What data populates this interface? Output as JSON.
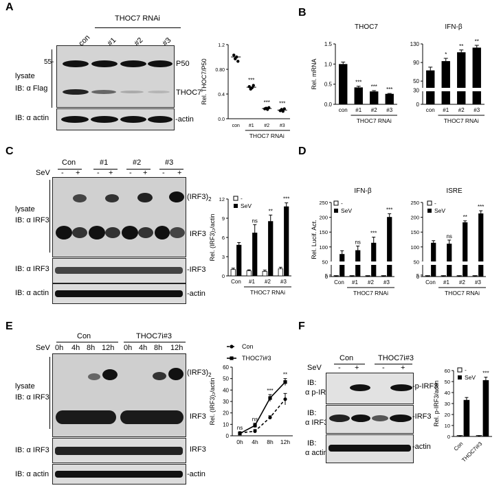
{
  "panels": {
    "A": {
      "letter": "A",
      "group_label": "THOC7 RNAi",
      "lanes": [
        "con",
        "#1",
        "#2",
        "#3"
      ],
      "lysate": "lysate",
      "ib_flag": "IB: α Flag",
      "marker": "55-",
      "band_p50": "P50",
      "band_thoc7": "THOC7",
      "ib_actin": "IB: α actin",
      "band_actin": "-actin"
    },
    "B": {
      "letter": "B"
    },
    "C": {
      "letter": "C",
      "lanes": [
        "Con",
        "#1",
        "#2",
        "#3"
      ],
      "sev": "SeV",
      "minus": "-",
      "plus": "+",
      "lysate": "lysate",
      "ib_irf3": "IB: α IRF3",
      "band_dimer": "(IRF3)",
      "band_dimer_sub": "2",
      "band_irf3": "IRF3",
      "band_irf3_dash": "-IRF3",
      "ib_irf3_2": "IB: α IRF3",
      "ib_actin": "IB: α actin",
      "band_actin": "-actin"
    },
    "D": {
      "letter": "D"
    },
    "E": {
      "letter": "E",
      "sev": "SeV",
      "groups": [
        "Con",
        "THOC7i#3"
      ],
      "times": [
        "0h",
        "4h",
        "8h",
        "12h"
      ],
      "lysate": "lysate",
      "ib_irf3": "IB: α IRF3",
      "band_dimer": "(IRF3)",
      "band_dimer_sub": "2",
      "band_irf3": "IRF3",
      "ib_irf3_2": "IB: α IRF3",
      "ib_actin": "IB: α actin",
      "band_irf3_dash": "IRF3",
      "band_actin": "-actin"
    },
    "F": {
      "letter": "F",
      "sev": "SeV",
      "groups": [
        "Con",
        "THOC7i#3"
      ],
      "minus": "-",
      "plus": "+",
      "ib1": "IB:",
      "ib1b": "α p-IRF3",
      "band1": "-p-IRF3",
      "ib2": "IB:",
      "ib2b": "α IRF3",
      "band2": "-IRF3",
      "ib3": "IB:",
      "ib3b": "α actin",
      "band3": "-actin"
    }
  },
  "chart_data": [
    {
      "id": "A",
      "type": "scatter",
      "ylabel": "Rel. THOC7/P50",
      "xlabel": "THOC7 RNAi",
      "categories": [
        "con",
        "#1",
        "#2",
        "#3"
      ],
      "points": [
        [
          1.03,
          0.97,
          1.0,
          0.93
        ],
        [
          0.52,
          0.48,
          0.5,
          0.54
        ],
        [
          0.16,
          0.17,
          0.15,
          0.18
        ],
        [
          0.13,
          0.15,
          0.12,
          0.16
        ]
      ],
      "mean": [
        1.0,
        0.51,
        0.165,
        0.14
      ],
      "sig": [
        "",
        "***",
        "***",
        "***"
      ],
      "ylim": [
        0,
        1.2
      ],
      "yticks": [
        "0.0",
        "0.4",
        "0.80",
        "1.2"
      ]
    },
    {
      "id": "B1",
      "type": "bar",
      "title": "THOC7",
      "ylabel": "Rel. mRNA",
      "xlabel": "THOC7 RNAi",
      "categories": [
        "con",
        "#1",
        "#2",
        "#3"
      ],
      "values": [
        1.0,
        0.42,
        0.32,
        0.26
      ],
      "errors": [
        0.05,
        0.03,
        0.02,
        0.01
      ],
      "sig": [
        "",
        "***",
        "***",
        "***"
      ],
      "ylim": [
        0,
        1.5
      ],
      "yticks": [
        "0.0",
        "0.5",
        "1.0",
        "1.5"
      ]
    },
    {
      "id": "B2",
      "type": "bar",
      "title": "IFN-β",
      "xlabel": "THOC7 RNAi",
      "categories": [
        "con",
        "#1",
        "#2",
        "#3"
      ],
      "values": [
        73,
        93,
        112,
        122
      ],
      "errors": [
        7,
        6,
        5,
        5
      ],
      "sig": [
        "",
        "*",
        "**",
        "**"
      ],
      "ylim": [
        0,
        130
      ],
      "yticks": [
        "0",
        "30",
        "50",
        "90",
        "130"
      ]
    },
    {
      "id": "C",
      "type": "bar",
      "ylabel": "Rel. (IRF3)₂/actin",
      "xlabel": "THOC7 RNAi",
      "legend": [
        "-",
        "SeV"
      ],
      "categories": [
        "Con",
        "#1",
        "#2",
        "#3"
      ],
      "series": [
        {
          "name": "-",
          "values": [
            1.0,
            0.8,
            0.7,
            1.1
          ],
          "errors": [
            0.2,
            0.15,
            0.2,
            0.25
          ]
        },
        {
          "name": "SeV",
          "values": [
            4.8,
            6.7,
            8.5,
            10.8
          ],
          "errors": [
            0.4,
            1.3,
            1.0,
            0.6
          ]
        }
      ],
      "sig": [
        "",
        "ns",
        "**",
        "***"
      ],
      "ylim": [
        0,
        12
      ],
      "yticks": [
        "0",
        "3",
        "6",
        "9",
        "12"
      ]
    },
    {
      "id": "D1",
      "type": "bar",
      "title": "IFN-β",
      "ylabel": "Rel. Lucif. Act.",
      "xlabel": "THOC7 RNAi",
      "legend": [
        "-",
        "SeV"
      ],
      "categories": [
        "Con",
        "#1",
        "#2",
        "#3"
      ],
      "series": [
        {
          "name": "-",
          "values": [
            1,
            1,
            1,
            1
          ],
          "errors": [
            0.3,
            0.3,
            0.3,
            0.3
          ]
        },
        {
          "name": "SeV",
          "values": [
            75,
            88,
            113,
            200
          ],
          "errors": [
            12,
            15,
            20,
            12
          ]
        }
      ],
      "sig": [
        "",
        "ns",
        "***",
        "***"
      ],
      "ylim": [
        0,
        250
      ],
      "yticks": [
        "0",
        "5",
        "50",
        "100",
        "150",
        "200",
        "250"
      ]
    },
    {
      "id": "D2",
      "type": "bar",
      "title": "ISRE",
      "xlabel": "THOC7 RNAi",
      "legend": [
        "-",
        "SeV"
      ],
      "categories": [
        "Con",
        "#1",
        "#2",
        "#3"
      ],
      "series": [
        {
          "name": "-",
          "values": [
            1,
            1,
            1,
            1
          ],
          "errors": [
            0.3,
            0.3,
            0.3,
            0.3
          ]
        },
        {
          "name": "SeV",
          "values": [
            113,
            110,
            182,
            212
          ],
          "errors": [
            8,
            13,
            6,
            10
          ]
        }
      ],
      "sig": [
        "",
        "ns",
        "**",
        "***"
      ],
      "ylim": [
        0,
        250
      ],
      "yticks": [
        "0",
        "5",
        "50",
        "100",
        "150",
        "200",
        "250"
      ]
    },
    {
      "id": "E",
      "type": "line",
      "ylabel": "Rel. (IRF3)₂/actin",
      "x": [
        "0h",
        "4h",
        "8h",
        "12h"
      ],
      "series": [
        {
          "name": "Con",
          "values": [
            2.5,
            4,
            16,
            32
          ],
          "errors": [
            1,
            1.5,
            1.5,
            5
          ]
        },
        {
          "name": "THOC7i#3",
          "values": [
            2.0,
            9,
            33,
            47
          ],
          "errors": [
            1,
            2,
            3,
            3
          ]
        }
      ],
      "sig": [
        "ns",
        "ns",
        "***",
        "**"
      ],
      "ylim": [
        0,
        60
      ],
      "yticks": [
        "0",
        "10",
        "20",
        "30",
        "40",
        "50",
        "60"
      ]
    },
    {
      "id": "F",
      "type": "bar",
      "ylabel": "Rel. p-IRF3/actin",
      "legend": [
        "-",
        "SeV"
      ],
      "categories": [
        "Con",
        "THOC7i#3"
      ],
      "series": [
        {
          "name": "-",
          "values": [
            0.3,
            0.3
          ],
          "errors": [
            0.1,
            0.1
          ]
        },
        {
          "name": "SeV",
          "values": [
            33,
            51
          ],
          "errors": [
            2.5,
            3
          ]
        }
      ],
      "sig": [
        "",
        "***"
      ],
      "ylim": [
        0,
        60
      ],
      "yticks": [
        "0",
        "10",
        "20",
        "30",
        "40",
        "50",
        "60"
      ]
    }
  ]
}
